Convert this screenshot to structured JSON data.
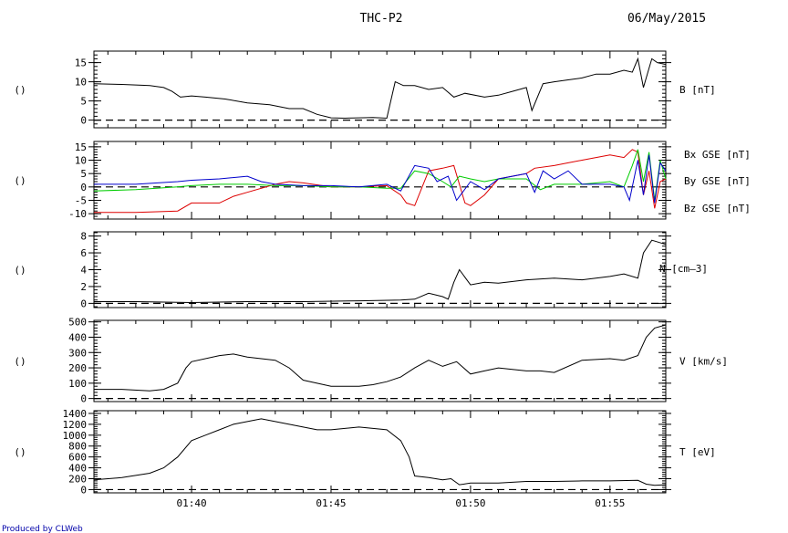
{
  "header": {
    "title": "THC-P2",
    "date": "06/May/2015"
  },
  "footer": {
    "credit": "Produced by CLWeb"
  },
  "colors": {
    "bx": "#dd0000",
    "by": "#00cc00",
    "bz": "#0000cc",
    "line": "#000000"
  },
  "chart_data": [
    {
      "type": "line",
      "left_label": "()",
      "ylabel": "B [nT]",
      "ylim": [
        -2,
        18
      ],
      "yticks": [
        0,
        5,
        10,
        15
      ],
      "xlim": [
        "01:36.5",
        "01:57.0"
      ],
      "series": [
        {
          "name": "B [nT]",
          "x": [
            "01:36.5",
            "01:37.5",
            "01:38.5",
            "01:39.0",
            "01:39.3",
            "01:39.6",
            "01:40.0",
            "01:40.5",
            "01:41.2",
            "01:42.0",
            "01:42.8",
            "01:43.5",
            "01:44.0",
            "01:44.5",
            "01:45.0",
            "01:45.5",
            "01:46.0",
            "01:46.5",
            "01:47.0",
            "01:47.3",
            "01:47.6",
            "01:48.0",
            "01:48.5",
            "01:49.0",
            "01:49.4",
            "01:49.8",
            "01:50.5",
            "01:51.0",
            "01:51.5",
            "01:52.0",
            "01:52.2",
            "01:52.6",
            "01:53.0",
            "01:53.5",
            "01:54.0",
            "01:54.5",
            "01:55.0",
            "01:55.5",
            "01:55.8",
            "01:56.0",
            "01:56.2",
            "01:56.4",
            "01:56.5",
            "01:56.7",
            "01:57.0"
          ],
          "values": [
            9.5,
            9.3,
            9.0,
            8.5,
            7.5,
            6.0,
            6.3,
            6.0,
            5.5,
            4.5,
            4.0,
            3.0,
            3.0,
            1.5,
            0.6,
            0.5,
            0.6,
            0.7,
            0.5,
            10.0,
            9.0,
            9.0,
            8.0,
            8.5,
            6.0,
            7.0,
            6.0,
            6.5,
            7.5,
            8.5,
            2.5,
            9.5,
            10.0,
            10.5,
            11.0,
            12.0,
            12.0,
            13.0,
            12.5,
            16.0,
            8.5,
            13.5,
            16.0,
            15.0,
            14.5
          ]
        }
      ]
    },
    {
      "type": "line",
      "left_label": "()",
      "ylim": [
        -12,
        17
      ],
      "yticks": [
        -10,
        -5,
        0,
        5,
        10,
        15
      ],
      "xlim": [
        "01:36.5",
        "01:57.0"
      ],
      "series": [
        {
          "name": "Bx GSE [nT]",
          "x": [
            "01:36.5",
            "01:38.0",
            "01:39.5",
            "01:40.0",
            "01:41.0",
            "01:41.5",
            "01:42.0",
            "01:43.0",
            "01:43.5",
            "01:44.0",
            "01:45.0",
            "01:46.0",
            "01:47.0",
            "01:47.5",
            "01:47.7",
            "01:48.0",
            "01:48.5",
            "01:49.0",
            "01:49.4",
            "01:49.8",
            "01:50.0",
            "01:50.5",
            "01:51.0",
            "01:52.0",
            "01:52.3",
            "01:53.0",
            "01:53.5",
            "01:54.0",
            "01:54.5",
            "01:55.0",
            "01:55.5",
            "01:55.8",
            "01:56.0",
            "01:56.2",
            "01:56.4",
            "01:56.6",
            "01:56.8",
            "01:57.0"
          ],
          "values": [
            -9.5,
            -9.5,
            -9.0,
            -6.0,
            -6.0,
            -3.5,
            -2.0,
            1.0,
            2.0,
            1.5,
            0.0,
            0.0,
            0.5,
            -3.0,
            -6.0,
            -7.0,
            6.0,
            7.0,
            8.0,
            -6.0,
            -7.0,
            -3.0,
            3.0,
            5.0,
            7.0,
            8.0,
            9.0,
            10.0,
            11.0,
            12.0,
            11.0,
            14.0,
            13.0,
            -3.0,
            6.0,
            -8.0,
            2.0,
            3.0
          ]
        },
        {
          "name": "By GSE [nT]",
          "x": [
            "01:36.5",
            "01:38.0",
            "01:39.5",
            "01:40.0",
            "01:41.0",
            "01:42.0",
            "01:43.0",
            "01:44.0",
            "01:45.0",
            "01:46.0",
            "01:47.0",
            "01:47.5",
            "01:48.0",
            "01:48.5",
            "01:49.0",
            "01:49.3",
            "01:49.6",
            "01:50.0",
            "01:50.5",
            "01:51.0",
            "01:52.0",
            "01:52.5",
            "01:53.0",
            "01:54.0",
            "01:55.0",
            "01:55.5",
            "01:55.8",
            "01:56.0",
            "01:56.2",
            "01:56.4",
            "01:56.6",
            "01:56.8",
            "01:57.0"
          ],
          "values": [
            -1.5,
            -1.0,
            0.0,
            0.5,
            1.0,
            1.0,
            0.5,
            0.5,
            0.0,
            0.0,
            -0.5,
            -0.5,
            6.0,
            5.0,
            2.0,
            0.0,
            4.0,
            3.0,
            2.0,
            3.0,
            3.0,
            -1.0,
            1.0,
            1.0,
            2.0,
            0.0,
            8.0,
            14.0,
            2.0,
            13.0,
            -5.0,
            10.0,
            3.0
          ]
        },
        {
          "name": "Bz GSE [nT]",
          "x": [
            "01:36.5",
            "01:38.0",
            "01:39.5",
            "01:40.0",
            "01:41.0",
            "01:42.0",
            "01:42.5",
            "01:43.0",
            "01:44.0",
            "01:45.0",
            "01:46.0",
            "01:47.0",
            "01:47.5",
            "01:48.0",
            "01:48.5",
            "01:48.8",
            "01:49.2",
            "01:49.5",
            "01:50.0",
            "01:50.5",
            "01:51.0",
            "01:52.0",
            "01:52.3",
            "01:52.6",
            "01:53.0",
            "01:53.5",
            "01:54.0",
            "01:55.0",
            "01:55.5",
            "01:55.7",
            "01:56.0",
            "01:56.2",
            "01:56.4",
            "01:56.6",
            "01:56.8",
            "01:57.0"
          ],
          "values": [
            1.0,
            1.0,
            2.0,
            2.5,
            3.0,
            4.0,
            2.0,
            1.0,
            0.5,
            0.5,
            0.0,
            1.0,
            -1.5,
            8.0,
            7.0,
            2.0,
            4.0,
            -5.0,
            2.0,
            -1.0,
            3.0,
            5.0,
            -2.0,
            6.0,
            3.0,
            6.0,
            1.0,
            1.0,
            0.0,
            -5.0,
            10.0,
            -3.0,
            12.0,
            -6.0,
            9.0,
            6.0
          ]
        }
      ]
    },
    {
      "type": "line",
      "left_label": "()",
      "ylabel": "N [cm^-3]",
      "ylim": [
        -0.5,
        8.5
      ],
      "yticks": [
        0,
        2,
        4,
        6,
        8
      ],
      "xlim": [
        "01:36.5",
        "01:57.0"
      ],
      "series": [
        {
          "name": "N [cm^-3]",
          "x": [
            "01:36.5",
            "01:38.0",
            "01:40.0",
            "01:42.0",
            "01:44.0",
            "01:46.0",
            "01:47.5",
            "01:48.0",
            "01:48.5",
            "01:49.0",
            "01:49.2",
            "01:49.4",
            "01:49.6",
            "01:50.0",
            "01:50.5",
            "01:51.0",
            "01:52.0",
            "01:53.0",
            "01:54.0",
            "01:54.5",
            "01:55.0",
            "01:55.5",
            "01:56.0",
            "01:56.2",
            "01:56.5",
            "01:57.0"
          ],
          "values": [
            0.2,
            0.2,
            0.1,
            0.2,
            0.2,
            0.3,
            0.4,
            0.5,
            1.2,
            0.8,
            0.5,
            2.5,
            4.0,
            2.2,
            2.5,
            2.4,
            2.8,
            3.0,
            2.8,
            3.0,
            3.2,
            3.5,
            3.0,
            6.0,
            7.5,
            7.0
          ]
        }
      ]
    },
    {
      "type": "line",
      "left_label": "()",
      "ylabel": "V [km/s]",
      "ylim": [
        -20,
        510
      ],
      "yticks": [
        0,
        100,
        200,
        300,
        400,
        500
      ],
      "xlim": [
        "01:36.5",
        "01:57.0"
      ],
      "series": [
        {
          "name": "V [km/s]",
          "x": [
            "01:36.5",
            "01:37.5",
            "01:38.5",
            "01:39.0",
            "01:39.5",
            "01:39.8",
            "01:40.0",
            "01:41.0",
            "01:41.5",
            "01:42.0",
            "01:43.0",
            "01:43.5",
            "01:44.0",
            "01:45.0",
            "01:46.0",
            "01:46.5",
            "01:47.0",
            "01:47.5",
            "01:48.0",
            "01:48.5",
            "01:49.0",
            "01:49.5",
            "01:50.0",
            "01:50.5",
            "01:51.0",
            "01:51.5",
            "01:52.0",
            "01:52.5",
            "01:53.0",
            "01:54.0",
            "01:55.0",
            "01:55.5",
            "01:56.0",
            "01:56.3",
            "01:56.6",
            "01:57.0"
          ],
          "values": [
            60,
            60,
            50,
            60,
            100,
            200,
            240,
            280,
            290,
            270,
            250,
            200,
            120,
            80,
            80,
            90,
            110,
            140,
            200,
            250,
            210,
            240,
            160,
            180,
            200,
            190,
            180,
            180,
            170,
            250,
            260,
            250,
            280,
            400,
            460,
            480
          ]
        }
      ]
    },
    {
      "type": "line",
      "left_label": "()",
      "ylabel": "T [eV]",
      "ylim": [
        -60,
        1450
      ],
      "yticks": [
        0,
        200,
        400,
        600,
        800,
        1000,
        1200,
        1400
      ],
      "xtick_labels": [
        "01:40",
        "01:45",
        "01:50",
        "01:55"
      ],
      "xlim": [
        "01:36.5",
        "01:57.0"
      ],
      "series": [
        {
          "name": "T [eV]",
          "x": [
            "01:36.5",
            "01:37.5",
            "01:38.5",
            "01:39.0",
            "01:39.5",
            "01:40.0",
            "01:40.5",
            "01:41.0",
            "01:41.5",
            "01:42.0",
            "01:42.5",
            "01:43.0",
            "01:43.5",
            "01:44.0",
            "01:44.5",
            "01:45.0",
            "01:46.0",
            "01:47.0",
            "01:47.5",
            "01:47.8",
            "01:48.0",
            "01:48.5",
            "01:49.0",
            "01:49.3",
            "01:49.6",
            "01:50.0",
            "01:51.0",
            "01:52.0",
            "01:53.0",
            "01:54.0",
            "01:55.0",
            "01:56.0",
            "01:56.3",
            "01:56.6",
            "01:57.0"
          ],
          "values": [
            180,
            220,
            300,
            400,
            600,
            900,
            1000,
            1100,
            1200,
            1250,
            1300,
            1250,
            1200,
            1150,
            1100,
            1100,
            1150,
            1100,
            900,
            600,
            250,
            220,
            180,
            200,
            90,
            120,
            120,
            150,
            150,
            160,
            160,
            170,
            100,
            80,
            90
          ]
        }
      ]
    }
  ],
  "right_labels": {
    "panel2": [
      "Bx GSE [nT]",
      "By GSE [nT]",
      "Bz GSE [nT]"
    ],
    "panel3": "N [cm",
    "panel3_suffix": "3]"
  }
}
